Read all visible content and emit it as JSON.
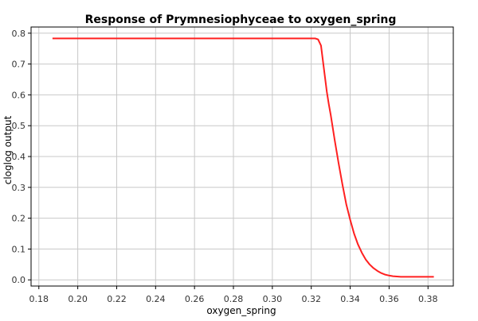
{
  "chart_data": {
    "type": "line",
    "title": "Response of Prymnesiophyceae to oxygen_spring",
    "xlabel": "oxygen_spring",
    "ylabel": "cloglog output",
    "xlim": [
      0.176,
      0.393
    ],
    "ylim": [
      -0.02,
      0.82
    ],
    "x_ticks": [
      0.18,
      0.2,
      0.22,
      0.24,
      0.26,
      0.28,
      0.3,
      0.32,
      0.34,
      0.36,
      0.38
    ],
    "x_tick_labels": [
      "0.18",
      "0.20",
      "0.22",
      "0.24",
      "0.26",
      "0.28",
      "0.30",
      "0.32",
      "0.34",
      "0.36",
      "0.38"
    ],
    "y_ticks": [
      0.0,
      0.1,
      0.2,
      0.3,
      0.4,
      0.5,
      0.6,
      0.7,
      0.8
    ],
    "y_tick_labels": [
      "0.0",
      "0.1",
      "0.2",
      "0.3",
      "0.4",
      "0.5",
      "0.6",
      "0.7",
      "0.8"
    ],
    "grid": true,
    "line_color": "#ff2020",
    "grid_color": "#c8c8c8",
    "series": [
      {
        "x": [
          0.187,
          0.22,
          0.26,
          0.3,
          0.322,
          0.3235,
          0.325,
          0.326,
          0.327,
          0.328,
          0.329,
          0.33,
          0.332,
          0.334,
          0.336,
          0.338,
          0.34,
          0.342,
          0.344,
          0.346,
          0.348,
          0.35,
          0.352,
          0.354,
          0.356,
          0.358,
          0.36,
          0.362,
          0.364,
          0.366,
          0.368,
          0.37,
          0.375,
          0.383
        ],
        "y": [
          0.783,
          0.783,
          0.783,
          0.783,
          0.783,
          0.78,
          0.76,
          0.71,
          0.66,
          0.61,
          0.57,
          0.535,
          0.455,
          0.38,
          0.31,
          0.245,
          0.195,
          0.15,
          0.115,
          0.088,
          0.066,
          0.05,
          0.038,
          0.029,
          0.022,
          0.017,
          0.014,
          0.012,
          0.011,
          0.01,
          0.01,
          0.01,
          0.01,
          0.01
        ]
      }
    ]
  }
}
